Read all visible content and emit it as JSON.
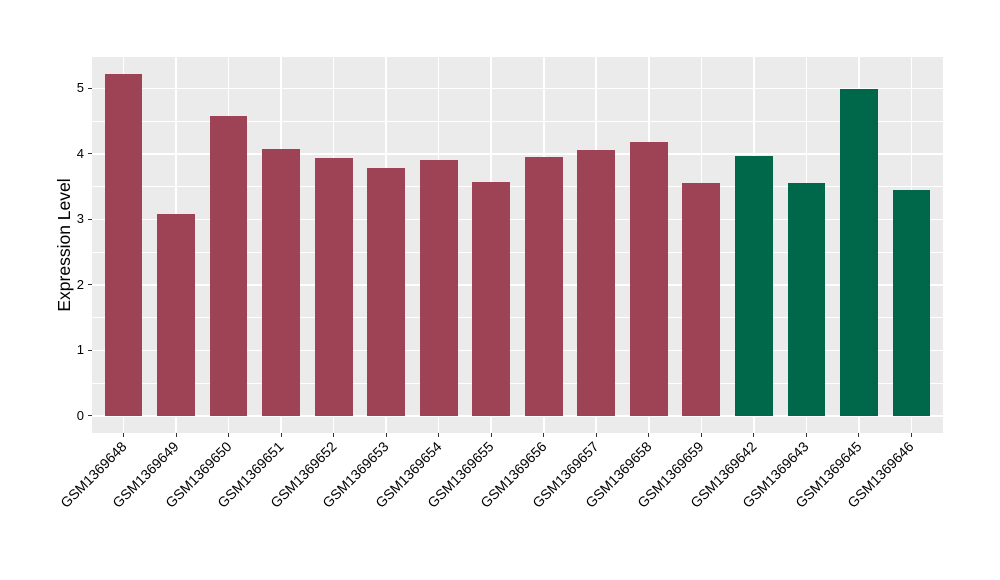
{
  "chart_data": {
    "type": "bar",
    "title": "",
    "xlabel": "",
    "ylabel": "Expression Level",
    "categories": [
      "GSM1369648",
      "GSM1369649",
      "GSM1369650",
      "GSM1369651",
      "GSM1369652",
      "GSM1369653",
      "GSM1369654",
      "GSM1369655",
      "GSM1369656",
      "GSM1369657",
      "GSM1369658",
      "GSM1369659",
      "GSM1369642",
      "GSM1369643",
      "GSM1369645",
      "GSM1369646"
    ],
    "values": [
      5.22,
      3.09,
      4.58,
      4.08,
      3.94,
      3.79,
      3.91,
      3.57,
      3.96,
      4.06,
      4.18,
      3.55,
      3.97,
      3.55,
      4.99,
      3.45
    ],
    "bar_colors": [
      "#9E4355",
      "#9E4355",
      "#9E4355",
      "#9E4355",
      "#9E4355",
      "#9E4355",
      "#9E4355",
      "#9E4355",
      "#9E4355",
      "#9E4355",
      "#9E4355",
      "#9E4355",
      "#00684A",
      "#00684A",
      "#00684A",
      "#00684A"
    ],
    "group_colors": {
      "group1": "#9E4355",
      "group2": "#00684A"
    },
    "y_ticks": [
      0,
      1,
      2,
      3,
      4,
      5
    ],
    "y_minor_ticks": [
      0.5,
      1.5,
      2.5,
      3.5,
      4.5
    ],
    "ylim": [
      -0.26,
      5.48
    ],
    "bar_width_fraction": 0.72,
    "grid": "on",
    "legend": "none",
    "panel_bg": "#EBEBEB",
    "grid_color": "#FFFFFF",
    "tick_color": "#333333",
    "text_color": "#000000",
    "figure_bg": "#FFFFFF"
  }
}
